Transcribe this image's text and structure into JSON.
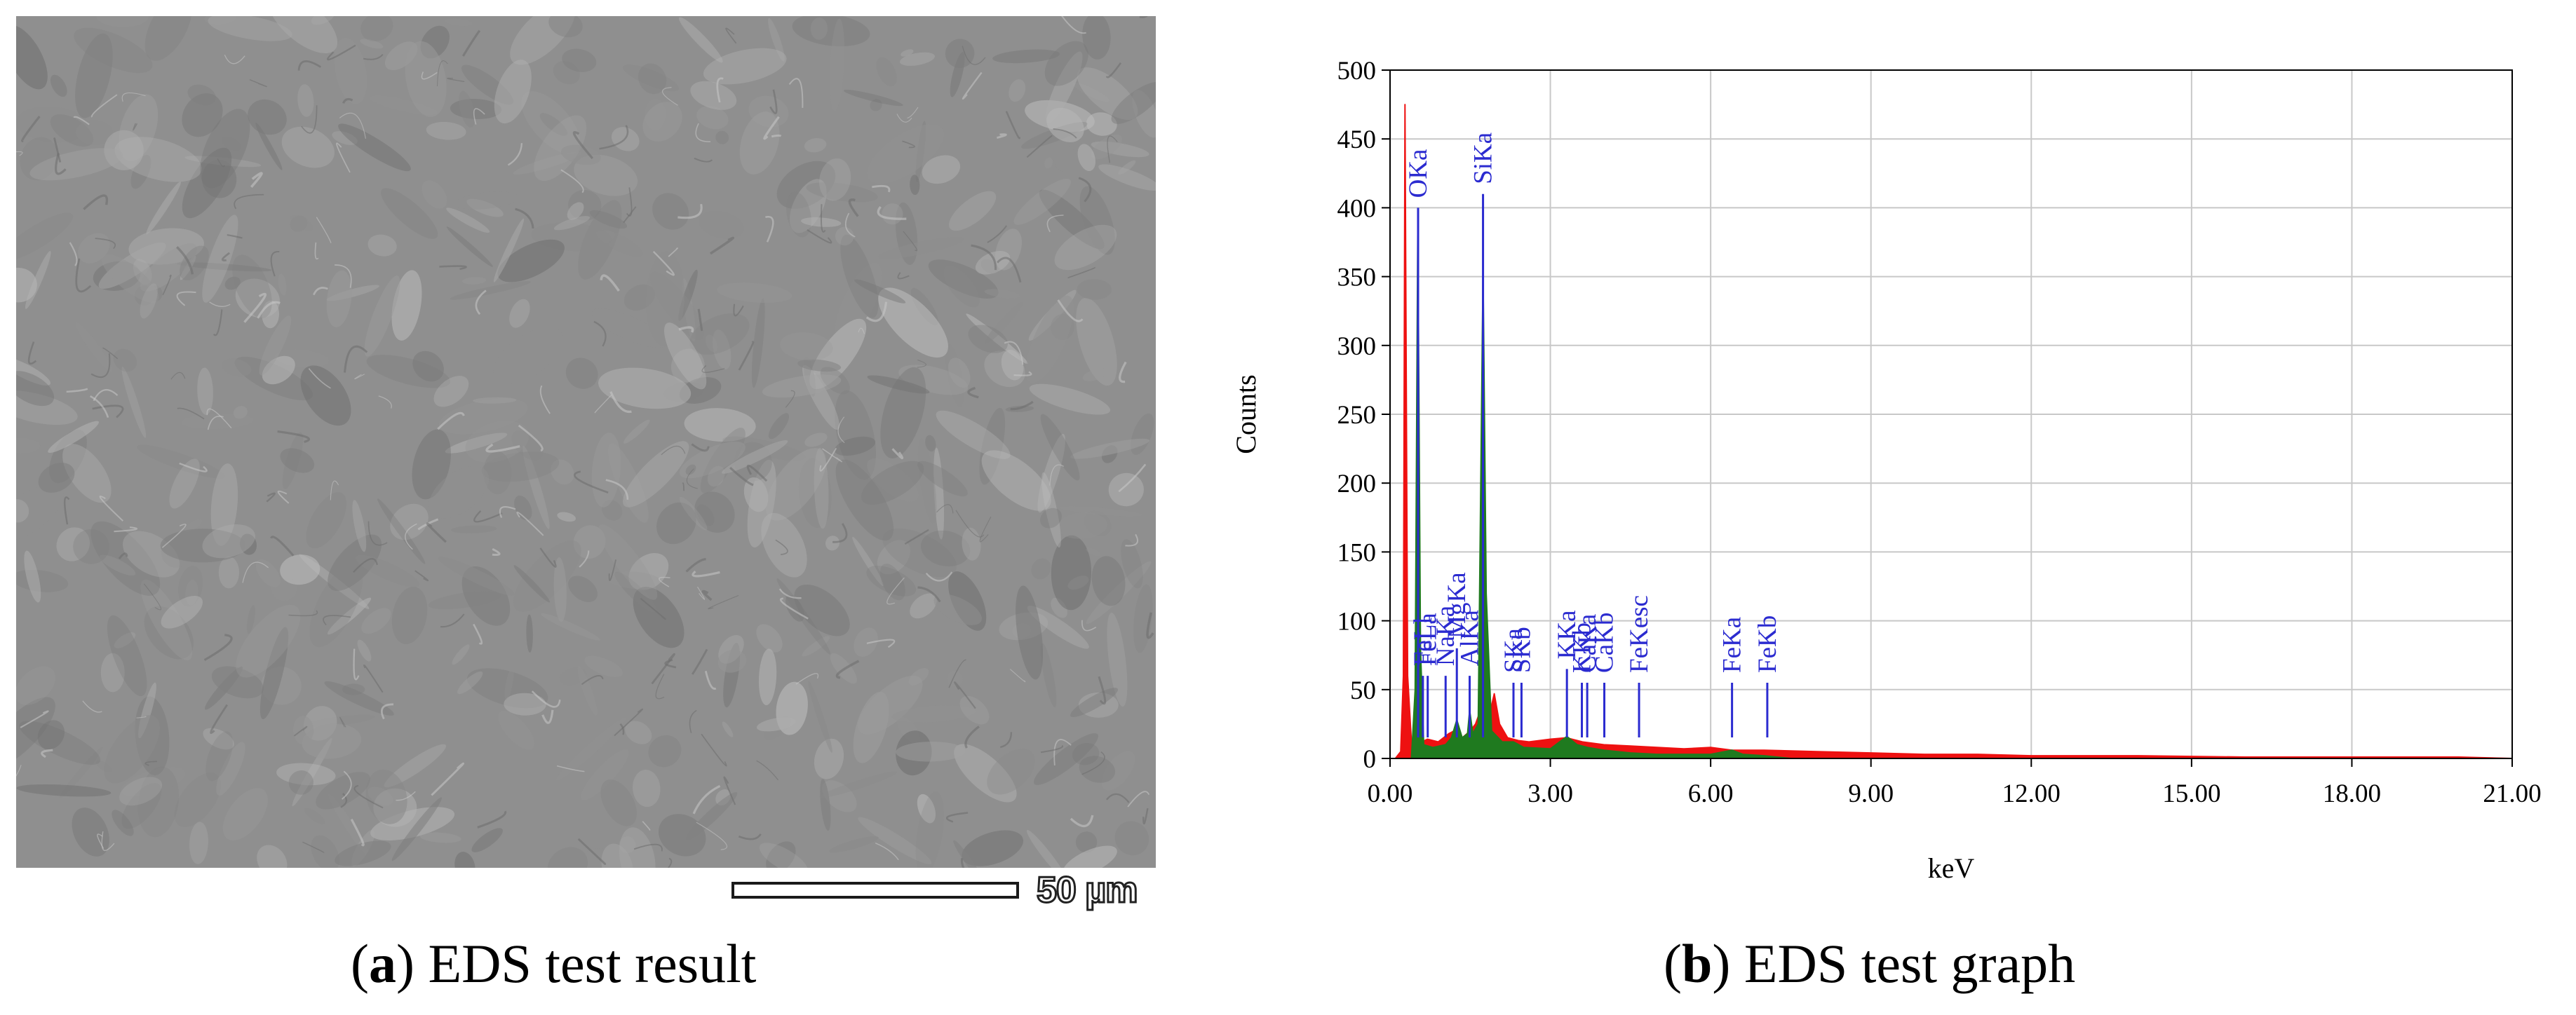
{
  "panel_a": {
    "caption_letter": "a",
    "caption_text": " EDS test result",
    "scale_bar_label": "50 µm"
  },
  "panel_b": {
    "caption_letter": "b",
    "caption_text": " EDS test graph"
  },
  "colors": {
    "total_spectrum": "#ee1111",
    "fitted_spectrum": "#1f7a1f",
    "peak_markers": "#2b2bd0",
    "grid": "#c8c8c8"
  },
  "chart_data": {
    "type": "area",
    "title": "",
    "xlabel": "keV",
    "ylabel": "Counts",
    "xlim": [
      0,
      21
    ],
    "ylim": [
      0,
      500
    ],
    "x_ticks": [
      "0.00",
      "3.00",
      "6.00",
      "9.00",
      "12.00",
      "15.00",
      "18.00",
      "21.00"
    ],
    "y_ticks": [
      "0",
      "50",
      "100",
      "150",
      "200",
      "250",
      "300",
      "350",
      "400",
      "450",
      "500"
    ],
    "grid": true,
    "series": [
      {
        "points": [
          [
            0.1,
            0
          ],
          [
            0.2,
            5
          ],
          [
            0.25,
            60
          ],
          [
            0.28,
            475
          ],
          [
            0.33,
            60
          ],
          [
            0.4,
            12
          ],
          [
            0.5,
            15
          ],
          [
            0.6,
            12
          ],
          [
            0.7,
            14
          ],
          [
            0.9,
            12
          ],
          [
            1.0,
            15
          ],
          [
            1.1,
            18
          ],
          [
            1.2,
            20
          ],
          [
            1.35,
            15
          ],
          [
            1.5,
            20
          ],
          [
            1.6,
            25
          ],
          [
            1.74,
            40
          ],
          [
            1.85,
            30
          ],
          [
            1.95,
            47
          ],
          [
            2.05,
            25
          ],
          [
            2.2,
            15
          ],
          [
            2.4,
            13
          ],
          [
            2.6,
            12
          ],
          [
            3.0,
            14
          ],
          [
            3.3,
            15
          ],
          [
            3.6,
            12
          ],
          [
            4.0,
            10
          ],
          [
            4.5,
            9
          ],
          [
            5.0,
            8
          ],
          [
            5.5,
            7
          ],
          [
            6.0,
            8
          ],
          [
            6.4,
            6
          ],
          [
            7.0,
            6
          ],
          [
            8.0,
            5
          ],
          [
            9.0,
            4
          ],
          [
            10.0,
            3
          ],
          [
            11.0,
            3
          ],
          [
            12.0,
            2
          ],
          [
            14.0,
            2
          ],
          [
            16.0,
            1
          ],
          [
            18.0,
            1
          ],
          [
            20.0,
            1
          ],
          [
            21.0,
            0
          ]
        ]
      },
      {
        "points": [
          [
            0.4,
            0
          ],
          [
            0.47,
            50
          ],
          [
            0.52,
            390
          ],
          [
            0.57,
            80
          ],
          [
            0.63,
            10
          ],
          [
            0.8,
            8
          ],
          [
            1.04,
            10
          ],
          [
            1.15,
            15
          ],
          [
            1.25,
            28
          ],
          [
            1.35,
            15
          ],
          [
            1.45,
            18
          ],
          [
            1.49,
            35
          ],
          [
            1.55,
            18
          ],
          [
            1.65,
            25
          ],
          [
            1.74,
            355
          ],
          [
            1.8,
            120
          ],
          [
            1.9,
            20
          ],
          [
            2.1,
            12
          ],
          [
            2.31,
            12
          ],
          [
            2.5,
            8
          ],
          [
            3.0,
            7
          ],
          [
            3.31,
            16
          ],
          [
            3.5,
            10
          ],
          [
            3.7,
            8
          ],
          [
            4.0,
            6
          ],
          [
            4.5,
            4
          ],
          [
            5.0,
            3
          ],
          [
            6.0,
            3
          ],
          [
            6.4,
            6
          ],
          [
            6.6,
            3
          ],
          [
            7.0,
            2
          ],
          [
            7.5,
            0
          ]
        ]
      }
    ],
    "peak_markers": [
      {
        "label": "OKa",
        "energy": 0.525,
        "marker_top": 400
      },
      {
        "label": "FeLl",
        "energy": 0.615,
        "marker_top": 60
      },
      {
        "label": "FeLa",
        "energy": 0.705,
        "marker_top": 60
      },
      {
        "label": "NaKa",
        "energy": 1.04,
        "marker_top": 60
      },
      {
        "label": "MgKa",
        "energy": 1.25,
        "marker_top": 80
      },
      {
        "label": "AlKa",
        "energy": 1.49,
        "marker_top": 60
      },
      {
        "label": "SiKa",
        "energy": 1.74,
        "marker_top": 410
      },
      {
        "label": "SKa",
        "energy": 2.31,
        "marker_top": 55
      },
      {
        "label": "SKb",
        "energy": 2.46,
        "marker_top": 55
      },
      {
        "label": "KKa",
        "energy": 3.31,
        "marker_top": 65
      },
      {
        "label": "KKb",
        "energy": 3.59,
        "marker_top": 55
      },
      {
        "label": "CaKa",
        "energy": 3.69,
        "marker_top": 55
      },
      {
        "label": "CaKb",
        "energy": 4.01,
        "marker_top": 55
      },
      {
        "label": "FeKesc",
        "energy": 4.66,
        "marker_top": 55
      },
      {
        "label": "FeKa",
        "energy": 6.4,
        "marker_top": 55
      },
      {
        "label": "FeKb",
        "energy": 7.06,
        "marker_top": 55
      }
    ]
  }
}
